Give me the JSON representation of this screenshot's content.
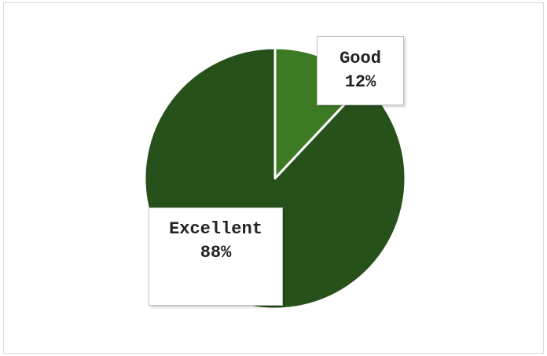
{
  "chart_data": {
    "type": "pie",
    "title": "",
    "slices": [
      {
        "label": "Good",
        "value": 12,
        "value_label": "12%",
        "color": "#3c7a23"
      },
      {
        "label": "Excellent",
        "value": 88,
        "value_label": "88%",
        "color": "#27511a"
      }
    ],
    "start_angle_deg": 0,
    "direction": "clockwise",
    "slice_border_color": "#ffffff",
    "legend": "none",
    "labels": "callout boxes"
  }
}
